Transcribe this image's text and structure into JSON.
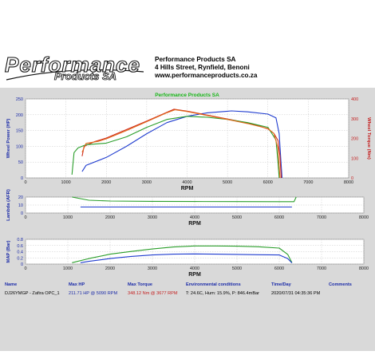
{
  "company": {
    "logo_text": "Performance",
    "logo_sub": "Products SA",
    "name": "Performance Products SA",
    "address": "4 Hills Street, Rynfield, Benoni",
    "website": "www.performanceproducts.co.za"
  },
  "colors": {
    "panel_bg": "#d9d9d9",
    "plot_bg": "#ffffff",
    "title_green": "#17b617",
    "axis_blue": "#1a2aa8",
    "axis_red": "#c41e1e",
    "power_blue": "#1f3ccf",
    "torque_red": "#d0291b",
    "power_green": "#2a9e2a",
    "torque_orange": "#e06a1c"
  },
  "chart_data": [
    {
      "type": "line",
      "title": "Performance Products SA",
      "xlabel": "RPM",
      "ylabel": "Wheel Power (HP)",
      "y2label": "Wheel Torque (Nm)",
      "xlim": [
        0,
        8000
      ],
      "ylim": [
        0,
        250
      ],
      "y2lim": [
        0,
        400
      ],
      "x_ticks": [
        "0",
        "1000",
        "2000",
        "3000",
        "4000",
        "5000",
        "6000",
        "7000",
        "8000"
      ],
      "y_ticks": [
        "0",
        "50",
        "100",
        "150",
        "200",
        "250"
      ],
      "y2_ticks": [
        "0",
        "100",
        "200",
        "300",
        "400"
      ],
      "grid": true,
      "series": [
        {
          "axis": "left",
          "color": "#1f3ccf",
          "x": [
            1400,
            1500,
            2000,
            2500,
            3000,
            3500,
            4000,
            4500,
            5000,
            5100,
            5500,
            6000,
            6200,
            6280,
            6320,
            6350
          ],
          "y": [
            20,
            40,
            65,
            100,
            140,
            175,
            195,
            206,
            211,
            212,
            209,
            202,
            190,
            140,
            60,
            0
          ]
        },
        {
          "axis": "right",
          "color": "#d0291b",
          "x": [
            1400,
            1450,
            1700,
            2000,
            2500,
            3000,
            3500,
            3677,
            4000,
            4500,
            5000,
            5500,
            5800,
            6000,
            6150,
            6250,
            6300,
            6330
          ],
          "y": [
            110,
            160,
            183,
            202,
            245,
            288,
            332,
            348,
            338,
            318,
            298,
            278,
            262,
            248,
            225,
            190,
            110,
            0
          ]
        },
        {
          "axis": "left",
          "color": "#2a9e2a",
          "x": [
            1150,
            1200,
            1300,
            1500,
            2000,
            2500,
            3000,
            3500,
            4000,
            4500,
            5000,
            5500,
            6000,
            6200,
            6250,
            6280
          ],
          "y": [
            10,
            80,
            95,
            105,
            110,
            130,
            160,
            185,
            195,
            192,
            185,
            175,
            160,
            120,
            50,
            0
          ]
        },
        {
          "axis": "right",
          "color": "#e06a1c",
          "x": [
            1400,
            1500,
            1800,
            2000,
            2500,
            3000,
            3500,
            3700,
            4000,
            4500,
            5000,
            5500,
            6000,
            6150,
            6250,
            6300
          ],
          "y": [
            130,
            175,
            185,
            198,
            240,
            285,
            330,
            345,
            336,
            316,
            296,
            275,
            250,
            225,
            150,
            0
          ]
        }
      ]
    },
    {
      "type": "line",
      "xlabel": "RPM",
      "ylabel": "Lambda (AFR)",
      "xlim": [
        0,
        8000
      ],
      "ylim": [
        0,
        20
      ],
      "x_ticks": [
        "0",
        "1000",
        "2000",
        "3000",
        "4000",
        "5000",
        "6000",
        "7000",
        "8000"
      ],
      "y_ticks": [
        "0",
        "10",
        "20"
      ],
      "grid": true,
      "series": [
        {
          "color": "#2a9e2a",
          "x": [
            1100,
            1200,
            1500,
            2000,
            3000,
            4000,
            5000,
            6000,
            6350,
            6400
          ],
          "y": [
            20,
            19,
            16,
            15,
            14.6,
            14.4,
            14.3,
            14.2,
            14.2,
            20
          ]
        },
        {
          "color": "#1f3ccf",
          "x": [
            1300,
            6300
          ],
          "y": [
            7.5,
            7.5
          ]
        }
      ]
    },
    {
      "type": "line",
      "xlabel": "RPM",
      "ylabel": "MAP (Bar)",
      "xlim": [
        0,
        8000
      ],
      "ylim": [
        0,
        0.9
      ],
      "x_ticks": [
        "0",
        "1000",
        "2000",
        "3000",
        "4000",
        "5000",
        "6000",
        "7000",
        "8000"
      ],
      "y_ticks": [
        "0",
        "0.2",
        "0.4",
        "0.6",
        "0.8"
      ],
      "grid": true,
      "series": [
        {
          "color": "#2a9e2a",
          "x": [
            1100,
            1500,
            2000,
            2500,
            3000,
            3500,
            4000,
            4500,
            5000,
            5500,
            6000,
            6200,
            6300
          ],
          "y": [
            0.05,
            0.2,
            0.36,
            0.46,
            0.55,
            0.62,
            0.66,
            0.66,
            0.65,
            0.63,
            0.58,
            0.35,
            0.05
          ]
        },
        {
          "color": "#1f3ccf",
          "x": [
            1300,
            1500,
            2000,
            2500,
            3000,
            3500,
            4000,
            4500,
            5000,
            5500,
            6000,
            6200,
            6300
          ],
          "y": [
            0.05,
            0.1,
            0.2,
            0.28,
            0.33,
            0.36,
            0.37,
            0.36,
            0.35,
            0.34,
            0.33,
            0.2,
            0.04
          ]
        }
      ]
    }
  ],
  "info_table": {
    "headers": {
      "name": "Name",
      "max_hp": "Max HP",
      "max_torque": "Max Torque",
      "environment": "Environmental conditions",
      "time_day": "Time/Day",
      "comments": "Comments"
    },
    "row": {
      "name": "DJ26YMGP - Zafira OPC_1",
      "max_hp": "211.71 HP @ 5090 RPM",
      "max_torque": "348.12 Nm @ 3677 RPM",
      "environment": "T: 24.6C, Hum: 15.9%, P: 846.4mBar",
      "time_day": "2020/07/31 04:35:36 PM",
      "comments": ""
    }
  }
}
